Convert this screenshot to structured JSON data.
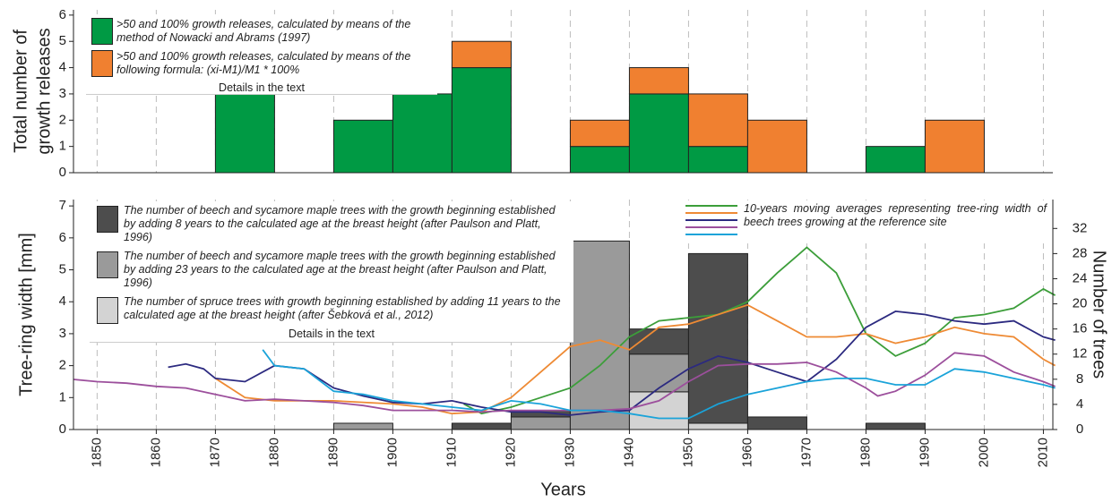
{
  "chart_data": [
    {
      "type": "histogram",
      "ylabel": [
        "Total number of",
        "growth releases"
      ],
      "bins": [
        1870,
        1880,
        1890,
        1900,
        1910,
        1920,
        1930,
        1940,
        1950,
        1960,
        1970,
        1980,
        1990,
        2000
      ],
      "series": [
        {
          "name": ">50 and 100% growth releases, calculated by means of the method of Nowacki and Abrams (1997)",
          "color": "#009a44",
          "values": [
            3,
            0,
            2,
            3,
            4,
            0,
            1,
            3,
            1,
            0,
            0,
            1,
            0
          ]
        },
        {
          "name": ">50 and 100% growth releases, calculated by means of the following formula: (xi-M1)/M1 * 100%",
          "color": "#f08030",
          "values": [
            0,
            0,
            0,
            0,
            1,
            0,
            1,
            1,
            2,
            2,
            0,
            0,
            2
          ]
        }
      ],
      "legend_note": "Details in the text",
      "xlim": [
        1846,
        2011.6
      ],
      "ylim": [
        0,
        6.2
      ],
      "yticks": [
        0,
        1,
        2,
        3,
        4,
        5,
        6
      ],
      "grid": true
    },
    {
      "type": "histogram-line",
      "xlabel": "Years",
      "ylabel": "Tree-ring width [mm]",
      "y2label": "Number of trees",
      "bins": [
        1890,
        1900,
        1910,
        1920,
        1930,
        1940,
        1950,
        1960,
        1970,
        1980,
        1990
      ],
      "series": [
        {
          "name": "The number of spruce trees with growth beginning established by adding 11 years to the calculated age at the breast height (after Šebková et al., 2012)",
          "color": "#d3d3d3",
          "axis": "y2",
          "values": [
            0,
            0,
            0,
            0,
            0,
            6,
            1,
            0,
            0,
            0
          ]
        },
        {
          "name": "The number of beech and sycamore maple trees with the growth beginning established by adding 23 years to the calculated age at the breast height (after Paulson and Platt, 1996)",
          "color": "#9a9a9a",
          "axis": "y2",
          "values": [
            1,
            0,
            0,
            2,
            30,
            6,
            0,
            0,
            0,
            0
          ]
        },
        {
          "name": "The number of beech and sycamore maple trees with the growth beginning established by adding 8 years to the calculated age at the breast height (after Paulson and Platt, 1996)",
          "color": "#4d4d4d",
          "axis": "y2",
          "values": [
            0,
            0,
            1,
            1,
            0,
            4,
            27,
            2,
            0,
            1
          ]
        }
      ],
      "legend_note": "Details in the text",
      "lines_legend": "10-years moving averages representing tree-ring width of beech trees growing at the reference site",
      "lines": [
        {
          "color": "#3c9e3a",
          "x": [
            1912,
            1915,
            1920,
            1925,
            1930,
            1935,
            1940,
            1945,
            1950,
            1955,
            1960,
            1965,
            1970,
            1975,
            1980,
            1985,
            1990,
            1995,
            2000,
            2005,
            2010,
            2012
          ],
          "values": [
            0.8,
            0.5,
            0.7,
            1.0,
            1.3,
            2.0,
            2.9,
            3.4,
            3.5,
            3.6,
            4.0,
            4.9,
            5.7,
            4.9,
            3.0,
            2.3,
            2.7,
            3.5,
            3.6,
            3.8,
            4.4,
            4.2
          ]
        },
        {
          "color": "#ee8a34",
          "x": [
            1870,
            1875,
            1880,
            1890,
            1900,
            1905,
            1910,
            1915,
            1920,
            1925,
            1930,
            1935,
            1940,
            1945,
            1950,
            1955,
            1960,
            1965,
            1970,
            1975,
            1980,
            1985,
            1990,
            1995,
            2000,
            2005,
            2010,
            2012
          ],
          "values": [
            1.6,
            1.0,
            0.9,
            0.9,
            0.8,
            0.7,
            0.5,
            0.55,
            1.0,
            1.8,
            2.6,
            2.8,
            2.5,
            3.2,
            3.3,
            3.6,
            3.9,
            3.4,
            2.9,
            2.9,
            3.0,
            2.7,
            2.9,
            3.2,
            3.0,
            2.9,
            2.2,
            2.0
          ]
        },
        {
          "color": "#2c2a80",
          "x": [
            1862,
            1865,
            1868,
            1870,
            1875,
            1880,
            1885,
            1890,
            1895,
            1900,
            1905,
            1910,
            1915,
            1920,
            1925,
            1930,
            1935,
            1940,
            1945,
            1950,
            1955,
            1960,
            1965,
            1970,
            1975,
            1980,
            1985,
            1990,
            1995,
            2000,
            2005,
            2010,
            2012
          ],
          "values": [
            1.95,
            2.05,
            1.9,
            1.6,
            1.5,
            2.0,
            1.9,
            1.3,
            1.05,
            0.85,
            0.8,
            0.9,
            0.7,
            0.55,
            0.55,
            0.45,
            0.55,
            0.6,
            1.3,
            1.9,
            2.3,
            2.1,
            1.8,
            1.5,
            2.2,
            3.2,
            3.7,
            3.6,
            3.4,
            3.3,
            3.4,
            2.9,
            2.8
          ]
        },
        {
          "color": "#9c4f9c",
          "x": [
            1846,
            1850,
            1855,
            1860,
            1865,
            1870,
            1875,
            1880,
            1885,
            1890,
            1895,
            1900,
            1905,
            1910,
            1915,
            1920,
            1925,
            1930,
            1935,
            1940,
            1945,
            1950,
            1955,
            1960,
            1965,
            1970,
            1975,
            1980,
            1982,
            1985,
            1990,
            1995,
            2000,
            2005,
            2010,
            2012
          ],
          "values": [
            1.57,
            1.5,
            1.45,
            1.35,
            1.3,
            1.1,
            0.9,
            0.95,
            0.9,
            0.85,
            0.75,
            0.6,
            0.6,
            0.6,
            0.55,
            0.6,
            0.6,
            0.6,
            0.6,
            0.65,
            0.9,
            1.5,
            2.0,
            2.05,
            2.05,
            2.1,
            1.8,
            1.3,
            1.05,
            1.2,
            1.7,
            2.4,
            2.3,
            1.8,
            1.5,
            1.35
          ]
        },
        {
          "color": "#1aa3d9",
          "x": [
            1878,
            1880,
            1885,
            1890,
            1895,
            1900,
            1905,
            1910,
            1915,
            1920,
            1925,
            1930,
            1935,
            1940,
            1945,
            1950,
            1955,
            1960,
            1965,
            1970,
            1975,
            1980,
            1985,
            1990,
            1995,
            2000,
            2005,
            2010,
            2012
          ],
          "values": [
            2.5,
            2.0,
            1.9,
            1.2,
            1.1,
            0.9,
            0.8,
            0.7,
            0.6,
            0.9,
            0.8,
            0.6,
            0.6,
            0.5,
            0.35,
            0.35,
            0.8,
            1.1,
            1.3,
            1.5,
            1.6,
            1.6,
            1.4,
            1.4,
            1.9,
            1.8,
            1.6,
            1.4,
            1.3
          ]
        }
      ],
      "xlim": [
        1846,
        2011.6
      ],
      "xticks": [
        1850,
        1860,
        1870,
        1880,
        1890,
        1900,
        1910,
        1920,
        1930,
        1940,
        1950,
        1960,
        1970,
        1980,
        1990,
        2000,
        2010
      ],
      "ylim": [
        0,
        7.2
      ],
      "yticks": [
        0,
        1,
        2,
        3,
        4,
        5,
        6,
        7
      ],
      "y2lim": [
        0,
        36.6
      ],
      "y2ticks": [
        0,
        4,
        8,
        12,
        16,
        20,
        24,
        28,
        32
      ],
      "grid": true
    }
  ]
}
